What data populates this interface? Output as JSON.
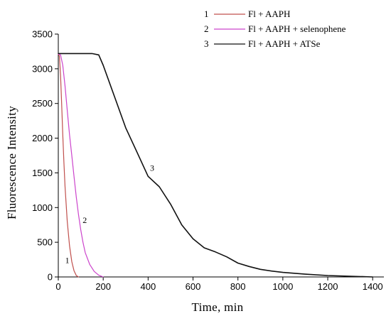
{
  "chart_data": {
    "type": "line",
    "title": "",
    "xlabel": "Time,  min",
    "ylabel": "Fluorescence  Intensity",
    "xlim": [
      0,
      1450
    ],
    "ylim": [
      0,
      3500
    ],
    "xticks": [
      0,
      200,
      400,
      600,
      800,
      1000,
      1200,
      1400
    ],
    "yticks": [
      0,
      500,
      1000,
      1500,
      2000,
      2500,
      3000,
      3500
    ],
    "grid": false,
    "legend_position": "top-right",
    "series": [
      {
        "id": "1",
        "name": "Fl + AAPH",
        "color": "#c0504d",
        "curve_label": "1",
        "label_at": [
          40,
          200
        ],
        "x": [
          0,
          5,
          10,
          15,
          20,
          25,
          30,
          40,
          50,
          60,
          70,
          80,
          90
        ],
        "y": [
          3210,
          3180,
          2900,
          2500,
          2050,
          1650,
          1300,
          800,
          450,
          220,
          90,
          20,
          0
        ]
      },
      {
        "id": "2",
        "name": "Fl + AAPH + selenophene",
        "color": "#cc44cc",
        "curve_label": "2",
        "label_at": [
          118,
          780
        ],
        "x": [
          0,
          10,
          20,
          30,
          40,
          50,
          60,
          70,
          80,
          90,
          100,
          110,
          120,
          140,
          160,
          180,
          200
        ],
        "y": [
          3210,
          3200,
          3050,
          2750,
          2400,
          2050,
          1750,
          1450,
          1150,
          900,
          680,
          500,
          350,
          180,
          80,
          25,
          0
        ]
      },
      {
        "id": "3",
        "name": "Fl + AAPH + ATSe",
        "color": "#111111",
        "curve_label": "3",
        "label_at": [
          418,
          1530
        ],
        "x": [
          0,
          50,
          100,
          150,
          180,
          200,
          250,
          300,
          350,
          400,
          450,
          500,
          550,
          600,
          650,
          700,
          750,
          800,
          850,
          900,
          950,
          1000,
          1100,
          1200,
          1300,
          1400
        ],
        "y": [
          3220,
          3220,
          3220,
          3220,
          3200,
          3050,
          2600,
          2150,
          1800,
          1450,
          1300,
          1050,
          750,
          550,
          420,
          360,
          290,
          200,
          150,
          110,
          85,
          65,
          40,
          20,
          10,
          0
        ]
      }
    ]
  },
  "legend": {
    "items": [
      {
        "num": "1",
        "label": "Fl + AAPH",
        "color": "#c0504d"
      },
      {
        "num": "2",
        "label": "Fl + AAPH + selenophene",
        "color": "#cc44cc"
      },
      {
        "num": "3",
        "label": "Fl + AAPH + ATSe",
        "color": "#111111"
      }
    ]
  }
}
